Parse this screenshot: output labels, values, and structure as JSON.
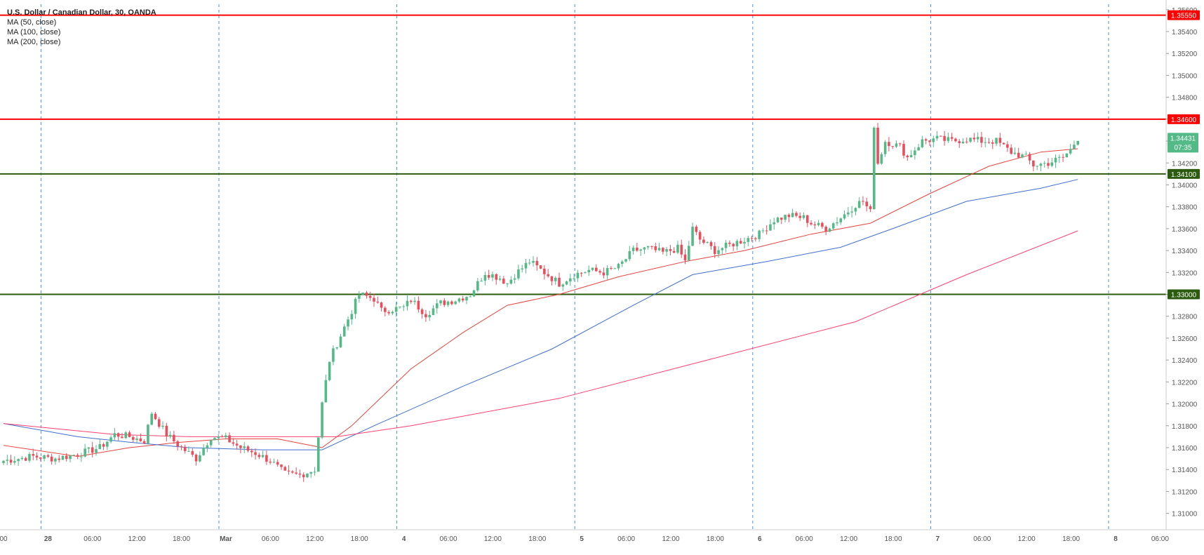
{
  "chart_data": {
    "type": "candlestick",
    "title": "U.S. Dollar / Canadian Dollar, 30, OANDA",
    "legend": [
      "MA (50, close)",
      "MA (100, close)",
      "MA (200, close)"
    ],
    "colors": {
      "up": "#53b987",
      "down": "#eb4d5c",
      "ma50": "#e8433d",
      "ma100": "#3f6fd1",
      "ma200": "#ff3f6f",
      "resistance": "#ff0000",
      "support": "#2b5b0f",
      "grid_dash": "#4a90e2",
      "axis_text": "#555555"
    },
    "ylim": [
      1.3085,
      1.3565
    ],
    "x_ticks": [
      "00",
      "28",
      "06:00",
      "12:00",
      "18:00",
      "Mar",
      "06:00",
      "12:00",
      "18:00",
      "4",
      "06:00",
      "12:00",
      "18:00",
      "5",
      "06:00",
      "12:00",
      "18:00",
      "6",
      "06:00",
      "12:00",
      "18:00",
      "7",
      "06:00",
      "12:00",
      "18:00",
      "8",
      "06:00"
    ],
    "y_ticks": [
      "1.35600",
      "1.35400",
      "1.35200",
      "1.35000",
      "1.34800",
      "1.34600",
      "1.34400",
      "1.34200",
      "1.34000",
      "1.33800",
      "1.33600",
      "1.33400",
      "1.33200",
      "1.33000",
      "1.32800",
      "1.32600",
      "1.32400",
      "1.32200",
      "1.32000",
      "1.31800",
      "1.31600",
      "1.31400",
      "1.31200",
      "1.31000"
    ],
    "levels": [
      {
        "label": "1.35550",
        "value": 1.3555,
        "kind": "resistance"
      },
      {
        "label": "1.34600",
        "value": 1.346,
        "kind": "resistance"
      },
      {
        "label": "1.34100",
        "value": 1.341,
        "kind": "support"
      },
      {
        "label": "1.33000",
        "value": 1.33,
        "kind": "support"
      }
    ],
    "last_price": {
      "label": "1.34431",
      "value": 1.3443,
      "countdown": "07:35"
    },
    "close_path": [
      [
        0,
        1.3148
      ],
      [
        8,
        1.3152
      ],
      [
        14,
        1.315
      ],
      [
        20,
        1.3154
      ],
      [
        26,
        1.316
      ],
      [
        30,
        1.3172
      ],
      [
        34,
        1.317
      ],
      [
        38,
        1.3166
      ],
      [
        40,
        1.3192
      ],
      [
        44,
        1.3172
      ],
      [
        48,
        1.316
      ],
      [
        52,
        1.315
      ],
      [
        56,
        1.317
      ],
      [
        60,
        1.3168
      ],
      [
        64,
        1.316
      ],
      [
        68,
        1.3155
      ],
      [
        72,
        1.3148
      ],
      [
        76,
        1.3136
      ],
      [
        80,
        1.3135
      ],
      [
        84,
        1.314
      ],
      [
        86,
        1.32
      ],
      [
        88,
        1.324
      ],
      [
        92,
        1.327
      ],
      [
        96,
        1.33
      ],
      [
        100,
        1.3296
      ],
      [
        102,
        1.3285
      ],
      [
        108,
        1.3288
      ],
      [
        110,
        1.3295
      ],
      [
        114,
        1.3282
      ],
      [
        118,
        1.3292
      ],
      [
        122,
        1.3295
      ],
      [
        126,
        1.33
      ],
      [
        130,
        1.332
      ],
      [
        134,
        1.3315
      ],
      [
        136,
        1.331
      ],
      [
        138,
        1.3318
      ],
      [
        142,
        1.333
      ],
      [
        146,
        1.332
      ],
      [
        150,
        1.331
      ],
      [
        154,
        1.3318
      ],
      [
        158,
        1.3322
      ],
      [
        162,
        1.332
      ],
      [
        166,
        1.3325
      ],
      [
        170,
        1.334
      ],
      [
        174,
        1.3342
      ],
      [
        178,
        1.3338
      ],
      [
        182,
        1.3342
      ],
      [
        184,
        1.333
      ],
      [
        186,
        1.336
      ],
      [
        188,
        1.335
      ],
      [
        192,
        1.334
      ],
      [
        196,
        1.3345
      ],
      [
        200,
        1.335
      ],
      [
        204,
        1.3355
      ],
      [
        208,
        1.3368
      ],
      [
        212,
        1.3372
      ],
      [
        216,
        1.337
      ],
      [
        218,
        1.3365
      ],
      [
        222,
        1.336
      ],
      [
        226,
        1.337
      ],
      [
        230,
        1.3382
      ],
      [
        232,
        1.3385
      ],
      [
        234,
        1.3375
      ],
      [
        235,
        1.3455
      ],
      [
        236,
        1.342
      ],
      [
        238,
        1.344
      ],
      [
        242,
        1.3435
      ],
      [
        244,
        1.3425
      ],
      [
        248,
        1.344
      ],
      [
        252,
        1.3442
      ],
      [
        256,
        1.344
      ],
      [
        260,
        1.3442
      ],
      [
        264,
        1.344
      ],
      [
        268,
        1.344
      ],
      [
        272,
        1.343
      ],
      [
        276,
        1.3425
      ],
      [
        278,
        1.3418
      ],
      [
        282,
        1.342
      ],
      [
        286,
        1.3425
      ],
      [
        288,
        1.3432
      ],
      [
        290,
        1.3443
      ]
    ],
    "ma50": [
      [
        0,
        1.3162
      ],
      [
        20,
        1.3152
      ],
      [
        34,
        1.316
      ],
      [
        48,
        1.3165
      ],
      [
        60,
        1.3168
      ],
      [
        74,
        1.3168
      ],
      [
        86,
        1.316
      ],
      [
        94,
        1.318
      ],
      [
        110,
        1.3232
      ],
      [
        124,
        1.3265
      ],
      [
        136,
        1.329
      ],
      [
        150,
        1.33
      ],
      [
        166,
        1.3316
      ],
      [
        184,
        1.333
      ],
      [
        200,
        1.334
      ],
      [
        218,
        1.3355
      ],
      [
        234,
        1.3365
      ],
      [
        250,
        1.3392
      ],
      [
        266,
        1.3417
      ],
      [
        280,
        1.343
      ],
      [
        290,
        1.3433
      ]
    ],
    "ma100": [
      [
        0,
        1.3182
      ],
      [
        20,
        1.317
      ],
      [
        34,
        1.3165
      ],
      [
        50,
        1.316
      ],
      [
        70,
        1.3158
      ],
      [
        86,
        1.3158
      ],
      [
        100,
        1.318
      ],
      [
        124,
        1.3216
      ],
      [
        148,
        1.325
      ],
      [
        170,
        1.329
      ],
      [
        186,
        1.3318
      ],
      [
        206,
        1.333
      ],
      [
        226,
        1.3343
      ],
      [
        240,
        1.336
      ],
      [
        260,
        1.3385
      ],
      [
        280,
        1.3397
      ],
      [
        290,
        1.3405
      ]
    ],
    "ma200": [
      [
        0,
        1.3182
      ],
      [
        30,
        1.3172
      ],
      [
        50,
        1.317
      ],
      [
        90,
        1.317
      ],
      [
        110,
        1.318
      ],
      [
        150,
        1.3205
      ],
      [
        190,
        1.324
      ],
      [
        230,
        1.3275
      ],
      [
        260,
        1.3318
      ],
      [
        290,
        1.3358
      ]
    ]
  }
}
